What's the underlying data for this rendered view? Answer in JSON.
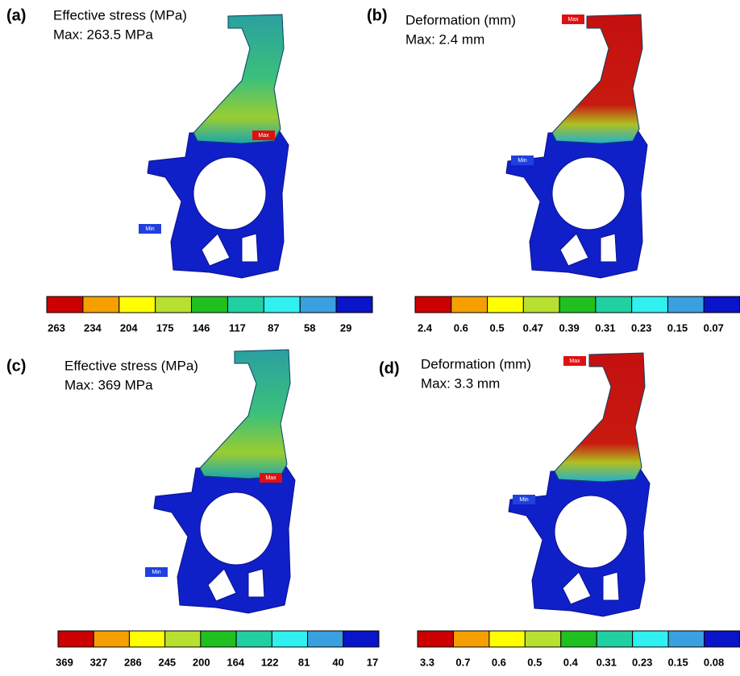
{
  "panels": [
    {
      "label": "(a)",
      "title": "Effective stress (MPa)",
      "max": "Max: 263.5 MPa",
      "markers": [
        "Max",
        "Min"
      ],
      "scale": [
        "263",
        "234",
        "204",
        "175",
        "146",
        "117",
        "87",
        "58",
        "29"
      ]
    },
    {
      "label": "(b)",
      "title": "Deformation (mm)",
      "max": "Max: 2.4 mm",
      "markers": [
        "Max",
        "Min"
      ],
      "scale": [
        "2.4",
        "0.6",
        "0.5",
        "0.47",
        "0.39",
        "0.31",
        "0.23",
        "0.15",
        "0.07"
      ]
    },
    {
      "label": "(c)",
      "title": "Effective stress (MPa)",
      "max": "Max: 369 MPa",
      "markers": [
        "Max",
        "Min"
      ],
      "scale": [
        "369",
        "327",
        "286",
        "245",
        "200",
        "164",
        "122",
        "81",
        "40",
        "17"
      ]
    },
    {
      "label": "(d)",
      "title": "Deformation (mm)",
      "max": "Max: 3.3 mm",
      "markers": [
        "Max",
        "Min"
      ],
      "scale": [
        "3.3",
        "0.7",
        "0.6",
        "0.5",
        "0.4",
        "0.31",
        "0.23",
        "0.15",
        "0.08"
      ]
    }
  ]
}
